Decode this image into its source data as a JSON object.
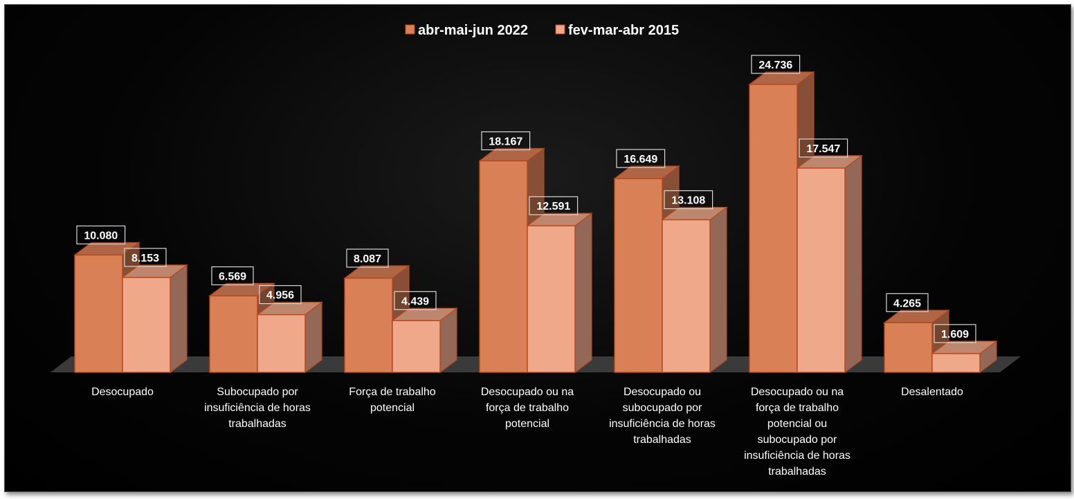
{
  "chart_data": {
    "type": "bar",
    "categories": [
      "Desocupado",
      "Subocupado por insuficiência de horas trabalhadas",
      "Força de trabalho potencial",
      "Desocupado ou na força de trabalho potencial",
      "Desocupado ou subocupado por insuficiência de horas trabalhadas",
      "Desocupado ou na força de trabalho potencial ou subocupado por insuficiência de horas trabalhadas",
      "Desalentado"
    ],
    "category_lines": [
      [
        "Desocupado"
      ],
      [
        "Subocupado por",
        "insuficiência de horas",
        "trabalhadas"
      ],
      [
        "Força de trabalho",
        "potencial"
      ],
      [
        "Desocupado ou na",
        "força de trabalho",
        "potencial"
      ],
      [
        "Desocupado ou",
        "subocupado por",
        "insuficiência de horas",
        "trabalhadas"
      ],
      [
        "Desocupado ou na",
        "força de trabalho",
        "potencial ou",
        "subocupado por",
        "insuficiência de horas",
        "trabalhadas"
      ],
      [
        "Desalentado"
      ]
    ],
    "series": [
      {
        "name": "abr-mai-jun 2022",
        "values": [
          10080,
          6569,
          8087,
          18167,
          16649,
          24736,
          4265
        ],
        "labels": [
          "10.080",
          "6.569",
          "8.087",
          "18.167",
          "16.649",
          "24.736",
          "4.265"
        ],
        "color": "#D98057"
      },
      {
        "name": "fev-mar-abr 2015",
        "values": [
          8153,
          4956,
          4439,
          12591,
          13108,
          17547,
          1609
        ],
        "labels": [
          "8.153",
          "4.956",
          "4.439",
          "12.591",
          "13.108",
          "17.547",
          "1.609"
        ],
        "color": "#EFA88A"
      }
    ],
    "ylim": [
      0,
      26000
    ],
    "grid": false,
    "legend_position": "top-center",
    "style": "3d-clustered-column",
    "background": "#000000",
    "edge_color": "#B8461A"
  }
}
